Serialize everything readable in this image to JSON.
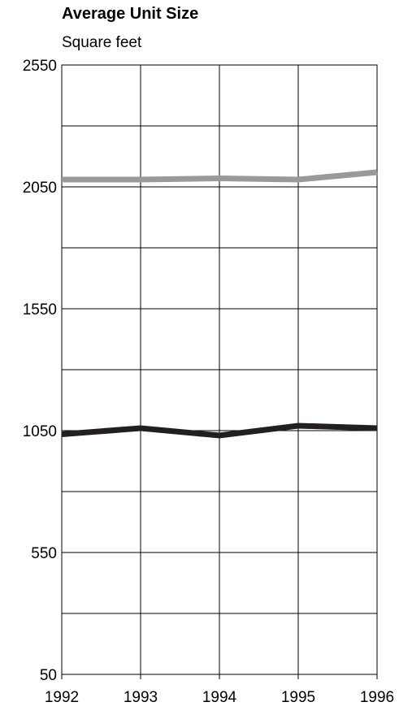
{
  "chart_data": {
    "type": "line",
    "title": "Average Unit Size",
    "ylabel": "Square feet",
    "xlabel": "",
    "x": [
      "1992",
      "1993",
      "1994",
      "1995",
      "1996"
    ],
    "ylim": [
      50,
      2550
    ],
    "yticks": [
      "2550",
      "2050",
      "1550",
      "1050",
      "550",
      "50"
    ],
    "ytick_values": [
      2550,
      2050,
      1550,
      1050,
      550,
      50
    ],
    "grid": true,
    "legend": "none",
    "series": [
      {
        "values": [
          2080,
          2080,
          2085,
          2080,
          2110
        ],
        "color": "#999999"
      },
      {
        "values": [
          1035,
          1060,
          1030,
          1070,
          1060
        ],
        "color": "#231f20"
      }
    ]
  }
}
